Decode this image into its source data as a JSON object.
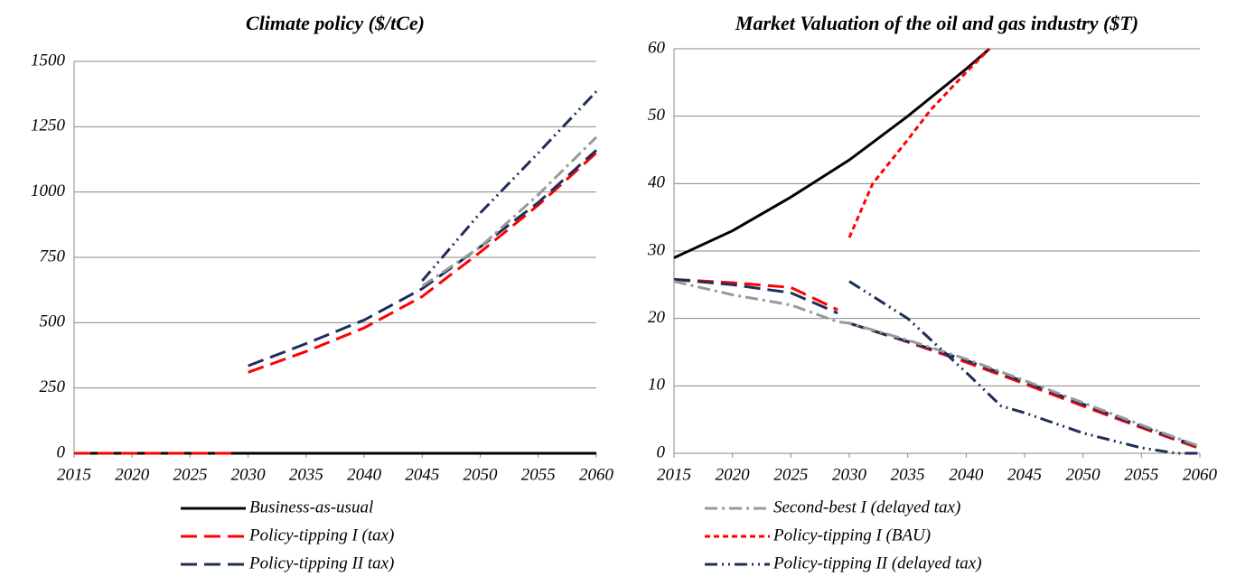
{
  "chart_data": [
    {
      "type": "line",
      "title": "Climate policy ($/tCe)",
      "xlim": [
        2015,
        2060
      ],
      "xticks": [
        2015,
        2020,
        2025,
        2030,
        2035,
        2040,
        2045,
        2050,
        2055,
        2060
      ],
      "ylim": [
        0,
        1500
      ],
      "yticks": [
        0,
        250,
        500,
        750,
        1000,
        1250,
        1500
      ],
      "grid": true,
      "series": [
        {
          "name": "Business-as-usual",
          "color": "#000000",
          "dash": "none",
          "x": [
            2015,
            2060
          ],
          "values": [
            0,
            0
          ]
        },
        {
          "name": "Policy-tipping I (tax)",
          "color": "#ff0000",
          "dash": "18,8",
          "x": [
            2015,
            2029,
            null,
            2030,
            2035,
            2040,
            2045,
            2050,
            2055,
            2060
          ],
          "values": [
            0,
            0,
            null,
            310,
            390,
            480,
            600,
            770,
            950,
            1150
          ]
        },
        {
          "name": "Policy-tipping II tax)",
          "color": "#1f2d5a",
          "dash": "18,8",
          "x": [
            2030,
            2035,
            2040,
            2045,
            2050,
            2055,
            2060
          ],
          "values": [
            335,
            420,
            510,
            630,
            790,
            960,
            1160
          ]
        },
        {
          "name": "Second-best I (delayed tax)",
          "color": "#999999",
          "dash": "14,5,3,5",
          "x": [
            2045,
            2050,
            2055,
            2060
          ],
          "values": [
            640,
            790,
            990,
            1210
          ]
        },
        {
          "name": "Policy-tipping II (delayed tax)",
          "color": "#1f2d5a",
          "dash": "14,5,2,5,2,5",
          "x": [
            2045,
            2050,
            2055,
            2060
          ],
          "values": [
            660,
            920,
            1150,
            1385
          ]
        }
      ]
    },
    {
      "type": "line",
      "title": "Market Valuation of the oil and gas industry ($T)",
      "xlim": [
        2015,
        2060
      ],
      "xticks": [
        2015,
        2020,
        2025,
        2030,
        2035,
        2040,
        2045,
        2050,
        2055,
        2060
      ],
      "ylim": [
        0,
        60
      ],
      "yticks": [
        0,
        10,
        20,
        30,
        40,
        50,
        60
      ],
      "grid": true,
      "series": [
        {
          "name": "Business-as-usual",
          "color": "#000000",
          "dash": "none",
          "x": [
            2015,
            2020,
            2025,
            2030,
            2035,
            2040,
            2042
          ],
          "values": [
            29,
            33,
            38,
            43.5,
            50,
            57,
            60
          ]
        },
        {
          "name": "Policy-tipping I (tax)",
          "color": "#ff0000",
          "dash": "18,8",
          "x": [
            2015,
            2020,
            2025,
            2029,
            null,
            2030,
            2035,
            2040,
            2045,
            2050,
            2055,
            2060
          ],
          "values": [
            25.8,
            25.3,
            24.6,
            21.3,
            null,
            19.3,
            16.5,
            13.5,
            10.3,
            7,
            3.8,
            0.7
          ]
        },
        {
          "name": "Policy-tipping II tax)",
          "color": "#1f2d5a",
          "dash": "18,8",
          "x": [
            2015,
            2020,
            2025,
            2029,
            null,
            2030,
            2035,
            2040,
            2045,
            2050,
            2055,
            2060
          ],
          "values": [
            25.8,
            25,
            23.8,
            20.8,
            null,
            19.3,
            16.6,
            13.8,
            10.6,
            7.3,
            4,
            0.9
          ]
        },
        {
          "name": "Second-best I (delayed tax)",
          "color": "#999999",
          "dash": "14,5,3,5",
          "x": [
            2015,
            2020,
            2025,
            2029,
            2030,
            2035,
            2040,
            2045,
            2050,
            2055,
            2060
          ],
          "values": [
            25.5,
            23.5,
            22,
            19.5,
            19.3,
            16.8,
            14,
            10.8,
            7.5,
            4.2,
            1
          ]
        },
        {
          "name": "Policy-tipping I (BAU)",
          "color": "#ff0000",
          "dash": "6,4",
          "x": [
            2030,
            2032,
            2035,
            2037,
            2040,
            2042
          ],
          "values": [
            32,
            40,
            46.5,
            51,
            56.5,
            60
          ]
        },
        {
          "name": "Policy-tipping II (delayed tax)",
          "color": "#1f2d5a",
          "dash": "14,5,2,5,2,5",
          "x": [
            2030,
            2035,
            2040,
            2043,
            2045,
            2050,
            2055,
            2058,
            2060
          ],
          "values": [
            25.5,
            20,
            12,
            7,
            6,
            3,
            0.8,
            0,
            0
          ]
        }
      ]
    }
  ]
}
